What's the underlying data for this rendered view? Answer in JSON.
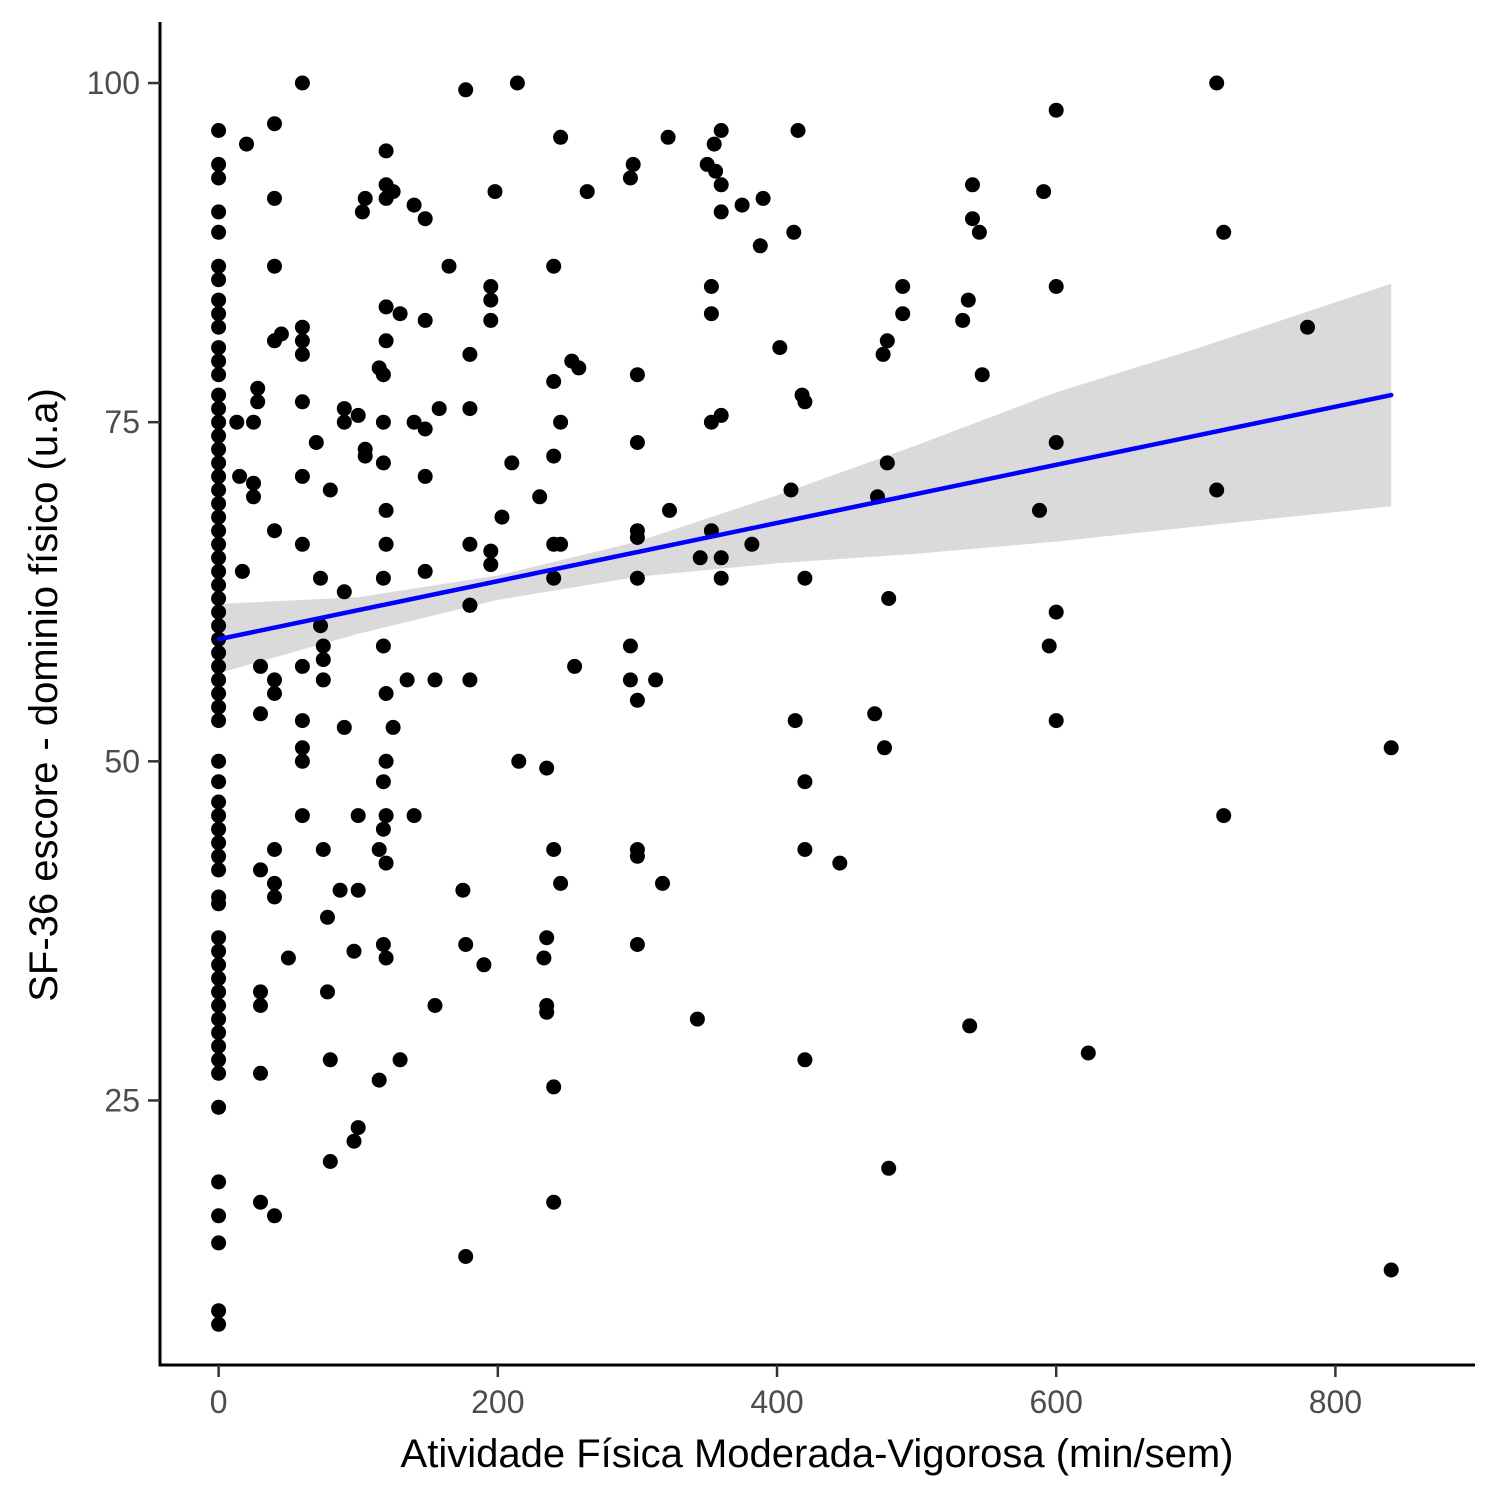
{
  "chart_data": {
    "type": "scatter",
    "xlabel": "Atividade Física Moderada-Vigorosa (min/sem)",
    "ylabel": "SF-36 escore - dominio físico (u.a)",
    "xlim": [
      -42,
      900
    ],
    "ylim": [
      5.5,
      104.5
    ],
    "x_ticks": [
      0,
      200,
      400,
      600,
      800
    ],
    "y_ticks": [
      25,
      50,
      75,
      100
    ],
    "grid": false,
    "legend": "none",
    "colors": {
      "points": "#000000",
      "trend": "#0000ff",
      "band": "#d3d3d3"
    },
    "trend_line": {
      "x": [
        0,
        840
      ],
      "y": [
        59,
        77
      ]
    },
    "confidence_band": {
      "x": [
        0,
        100,
        200,
        300,
        400,
        500,
        600,
        700,
        840
      ],
      "lower": [
        56.5,
        59.4,
        61.9,
        63.6,
        64.6,
        65.3,
        66.2,
        67.3,
        68.8
      ],
      "upper": [
        61.6,
        62.1,
        63.7,
        66.2,
        69.6,
        73.3,
        77.2,
        80.4,
        85.2
      ]
    },
    "points": [
      [
        0,
        96.5
      ],
      [
        0,
        94
      ],
      [
        0,
        93
      ],
      [
        0,
        90.5
      ],
      [
        0,
        89
      ],
      [
        0,
        86.5
      ],
      [
        0,
        85.5
      ],
      [
        0,
        84
      ],
      [
        0,
        83
      ],
      [
        0,
        82
      ],
      [
        0,
        80.5
      ],
      [
        0,
        79.5
      ],
      [
        0,
        78.5
      ],
      [
        0,
        77
      ],
      [
        0,
        76
      ],
      [
        0,
        75
      ],
      [
        0,
        74
      ],
      [
        0,
        73
      ],
      [
        0,
        72
      ],
      [
        0,
        71
      ],
      [
        0,
        70
      ],
      [
        0,
        69
      ],
      [
        0,
        68
      ],
      [
        0,
        67
      ],
      [
        0,
        66
      ],
      [
        0,
        65
      ],
      [
        0,
        64
      ],
      [
        0,
        63
      ],
      [
        0,
        62
      ],
      [
        0,
        61
      ],
      [
        0,
        60
      ],
      [
        0,
        59
      ],
      [
        0,
        58
      ],
      [
        0,
        57
      ],
      [
        0,
        56
      ],
      [
        0,
        55
      ],
      [
        0,
        54
      ],
      [
        0,
        53
      ],
      [
        0,
        50
      ],
      [
        0,
        48.5
      ],
      [
        0,
        47
      ],
      [
        0,
        46
      ],
      [
        0,
        45
      ],
      [
        0,
        44
      ],
      [
        0,
        43
      ],
      [
        0,
        42
      ],
      [
        0,
        40
      ],
      [
        0,
        39.5
      ],
      [
        0,
        37
      ],
      [
        0,
        36
      ],
      [
        0,
        35
      ],
      [
        0,
        34
      ],
      [
        0,
        33
      ],
      [
        0,
        32
      ],
      [
        0,
        31
      ],
      [
        0,
        30
      ],
      [
        0,
        29
      ],
      [
        0,
        28
      ],
      [
        0,
        27
      ],
      [
        0,
        24.5
      ],
      [
        0,
        19
      ],
      [
        0,
        16.5
      ],
      [
        0,
        14.5
      ],
      [
        0,
        9.5
      ],
      [
        0,
        8.5
      ],
      [
        13,
        75
      ],
      [
        15,
        71
      ],
      [
        17,
        64
      ],
      [
        20,
        95.5
      ],
      [
        25,
        75
      ],
      [
        25,
        70.5
      ],
      [
        25,
        69.5
      ],
      [
        28,
        77.5
      ],
      [
        28,
        76.5
      ],
      [
        30,
        57
      ],
      [
        30,
        53.5
      ],
      [
        30,
        42
      ],
      [
        30,
        33
      ],
      [
        30,
        32
      ],
      [
        30,
        27
      ],
      [
        30,
        17.5
      ],
      [
        40,
        97
      ],
      [
        40,
        91.5
      ],
      [
        40,
        86.5
      ],
      [
        40,
        81
      ],
      [
        40,
        67
      ],
      [
        40,
        56
      ],
      [
        40,
        55
      ],
      [
        40,
        43.5
      ],
      [
        40,
        41
      ],
      [
        40,
        40
      ],
      [
        40,
        16.5
      ],
      [
        45,
        81.5
      ],
      [
        50,
        35.5
      ],
      [
        60,
        100
      ],
      [
        60,
        82
      ],
      [
        60,
        81
      ],
      [
        60,
        80
      ],
      [
        60,
        76.5
      ],
      [
        60,
        71
      ],
      [
        60,
        66
      ],
      [
        60,
        57
      ],
      [
        60,
        53
      ],
      [
        60,
        51
      ],
      [
        60,
        50
      ],
      [
        60,
        46
      ],
      [
        70,
        73.5
      ],
      [
        73,
        63.5
      ],
      [
        73,
        60
      ],
      [
        75,
        58.5
      ],
      [
        75,
        57.5
      ],
      [
        75,
        56
      ],
      [
        75,
        43.5
      ],
      [
        78,
        38.5
      ],
      [
        78,
        33
      ],
      [
        80,
        70
      ],
      [
        80,
        28
      ],
      [
        80,
        20.5
      ],
      [
        87,
        40.5
      ],
      [
        90,
        75
      ],
      [
        90,
        76
      ],
      [
        90,
        52.5
      ],
      [
        90,
        62.5
      ],
      [
        97,
        36
      ],
      [
        97,
        22
      ],
      [
        100,
        75.5
      ],
      [
        100,
        46
      ],
      [
        100,
        40.5
      ],
      [
        100,
        23
      ],
      [
        105,
        73
      ],
      [
        105,
        72.5
      ],
      [
        105,
        91.5
      ],
      [
        103,
        90.5
      ],
      [
        115,
        79
      ],
      [
        115,
        43.5
      ],
      [
        115,
        26.5
      ],
      [
        118,
        78.5
      ],
      [
        118,
        75
      ],
      [
        118,
        72
      ],
      [
        118,
        63.5
      ],
      [
        118,
        58.5
      ],
      [
        118,
        48.5
      ],
      [
        118,
        45
      ],
      [
        118,
        36.5
      ],
      [
        120,
        95
      ],
      [
        120,
        92.5
      ],
      [
        120,
        91.5
      ],
      [
        120,
        83.5
      ],
      [
        120,
        81
      ],
      [
        120,
        68.5
      ],
      [
        120,
        66
      ],
      [
        120,
        55
      ],
      [
        120,
        50
      ],
      [
        120,
        46
      ],
      [
        120,
        42.5
      ],
      [
        120,
        35.5
      ],
      [
        125,
        92
      ],
      [
        125,
        52.5
      ],
      [
        130,
        83
      ],
      [
        130,
        28
      ],
      [
        135,
        56
      ],
      [
        140,
        91
      ],
      [
        140,
        75
      ],
      [
        140,
        46
      ],
      [
        148,
        90
      ],
      [
        148,
        82.5
      ],
      [
        148,
        74.5
      ],
      [
        148,
        71
      ],
      [
        148,
        64
      ],
      [
        155,
        56
      ],
      [
        155,
        32
      ],
      [
        158,
        76
      ],
      [
        165,
        86.5
      ],
      [
        175,
        40.5
      ],
      [
        177,
        36.5
      ],
      [
        177,
        99.5
      ],
      [
        177,
        13.5
      ],
      [
        180,
        80
      ],
      [
        180,
        76
      ],
      [
        180,
        66
      ],
      [
        180,
        61.5
      ],
      [
        180,
        61.5
      ],
      [
        180,
        56
      ],
      [
        190,
        35
      ],
      [
        195,
        85
      ],
      [
        195,
        84
      ],
      [
        195,
        82.5
      ],
      [
        195,
        65.5
      ],
      [
        195,
        64.5
      ],
      [
        198,
        92
      ],
      [
        203,
        68
      ],
      [
        210,
        72
      ],
      [
        214,
        100
      ],
      [
        215,
        50
      ],
      [
        230,
        69.5
      ],
      [
        233,
        35.5
      ],
      [
        235,
        37
      ],
      [
        235,
        32
      ],
      [
        235,
        31.5
      ],
      [
        235,
        49.5
      ],
      [
        240,
        86.5
      ],
      [
        240,
        78
      ],
      [
        240,
        72.5
      ],
      [
        240,
        66
      ],
      [
        240,
        63.5
      ],
      [
        240,
        43.5
      ],
      [
        240,
        26
      ],
      [
        240,
        17.5
      ],
      [
        245,
        96
      ],
      [
        245,
        75
      ],
      [
        245,
        66
      ],
      [
        245,
        41
      ],
      [
        253,
        79.5
      ],
      [
        255,
        57
      ],
      [
        258,
        79
      ],
      [
        264,
        92
      ],
      [
        295,
        93
      ],
      [
        295,
        58.5
      ],
      [
        295,
        56
      ],
      [
        297,
        94
      ],
      [
        300,
        78.5
      ],
      [
        300,
        73.5
      ],
      [
        300,
        67
      ],
      [
        300,
        66.5
      ],
      [
        300,
        63.5
      ],
      [
        300,
        54.5
      ],
      [
        300,
        43.5
      ],
      [
        300,
        43
      ],
      [
        300,
        36.5
      ],
      [
        313,
        56
      ],
      [
        318,
        41
      ],
      [
        322,
        96
      ],
      [
        323,
        68.5
      ],
      [
        343,
        31
      ],
      [
        345,
        65
      ],
      [
        350,
        94
      ],
      [
        353,
        85
      ],
      [
        353,
        83
      ],
      [
        353,
        75
      ],
      [
        353,
        67
      ],
      [
        355,
        95.5
      ],
      [
        356,
        93.5
      ],
      [
        360,
        96.5
      ],
      [
        360,
        92.5
      ],
      [
        360,
        90.5
      ],
      [
        360,
        75.5
      ],
      [
        360,
        65
      ],
      [
        360,
        63.5
      ],
      [
        375,
        91
      ],
      [
        382,
        66
      ],
      [
        388,
        88
      ],
      [
        390,
        91.5
      ],
      [
        402,
        80.5
      ],
      [
        410,
        70
      ],
      [
        412,
        89
      ],
      [
        413,
        53
      ],
      [
        415,
        96.5
      ],
      [
        418,
        77
      ],
      [
        420,
        76.5
      ],
      [
        420,
        63.5
      ],
      [
        420,
        48.5
      ],
      [
        420,
        43.5
      ],
      [
        420,
        28
      ],
      [
        445,
        42.5
      ],
      [
        470,
        53.5
      ],
      [
        472,
        69.5
      ],
      [
        476,
        80
      ],
      [
        477,
        51
      ],
      [
        479,
        81
      ],
      [
        479,
        72
      ],
      [
        480,
        62
      ],
      [
        480,
        20
      ],
      [
        490,
        85
      ],
      [
        490,
        83
      ],
      [
        533,
        82.5
      ],
      [
        537,
        84
      ],
      [
        538,
        30.5
      ],
      [
        540,
        92.5
      ],
      [
        540,
        90
      ],
      [
        545,
        89
      ],
      [
        547,
        78.5
      ],
      [
        588,
        68.5
      ],
      [
        591,
        92
      ],
      [
        595,
        58.5
      ],
      [
        600,
        98
      ],
      [
        600,
        85
      ],
      [
        600,
        73.5
      ],
      [
        600,
        61
      ],
      [
        600,
        53
      ],
      [
        623,
        28.5
      ],
      [
        715,
        100
      ],
      [
        715,
        70
      ],
      [
        720,
        89
      ],
      [
        720,
        46
      ],
      [
        780,
        82
      ],
      [
        840,
        51
      ],
      [
        840,
        12.5
      ]
    ]
  }
}
